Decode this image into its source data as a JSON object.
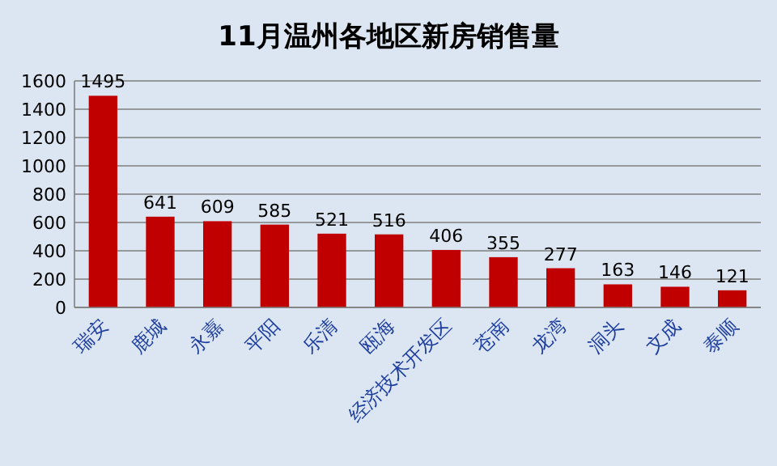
{
  "chart_data": {
    "type": "bar",
    "title": "11月温州各地区新房销售量",
    "categories": [
      "瑞安",
      "鹿城",
      "永嘉",
      "平阳",
      "乐清",
      "瓯海",
      "经济技术开发区",
      "苍南",
      "龙湾",
      "洞头",
      "文成",
      "泰顺"
    ],
    "values": [
      1495,
      641,
      609,
      585,
      521,
      516,
      406,
      355,
      277,
      163,
      146,
      121
    ],
    "color": "#c00000",
    "ylim": [
      0,
      1600
    ],
    "yticks": [
      0,
      200,
      400,
      600,
      800,
      1000,
      1200,
      1400,
      1600
    ],
    "grid": "y",
    "data_labels": true
  }
}
